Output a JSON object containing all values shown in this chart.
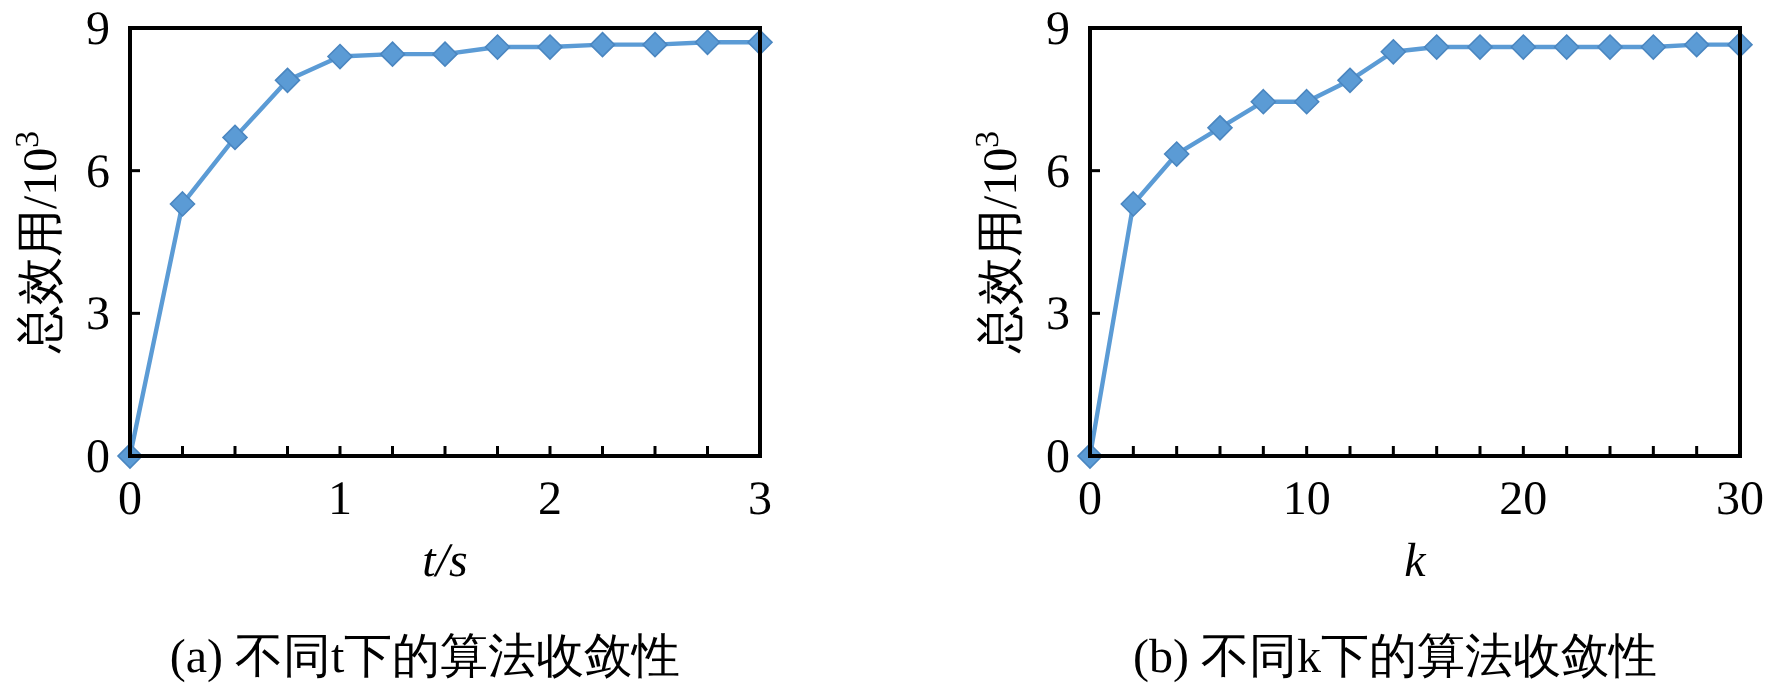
{
  "chart_data": [
    {
      "type": "line",
      "title": "(a) 不同t下的算法收敛性",
      "xlabel": "t/s",
      "ylabel": "总效用/10$^{3}$",
      "marker": "diamond",
      "line_style": "solid",
      "grid": false,
      "xlim": [
        0,
        3
      ],
      "ylim": [
        0,
        9
      ],
      "xticks": [
        0,
        {
          "value": 0.25,
          "label": null
        },
        {
          "value": 0.5,
          "label": null
        },
        {
          "value": 0.75,
          "label": null
        },
        1,
        {
          "value": 1.25,
          "label": null
        },
        {
          "value": 1.5,
          "label": null
        },
        {
          "value": 1.75,
          "label": null
        },
        2,
        {
          "value": 2.25,
          "label": null
        },
        {
          "value": 2.5,
          "label": null
        },
        {
          "value": 2.75,
          "label": null
        },
        3
      ],
      "yticks": [
        0,
        3,
        6,
        9
      ],
      "series": [
        {
          "color": "#5b9bd5",
          "x": [
            0,
            0.25,
            0.5,
            0.75,
            1,
            1.25,
            1.5,
            1.75,
            2,
            2.25,
            2.5,
            2.75,
            3
          ],
          "values": [
            0,
            5.3,
            6.7,
            7.9,
            8.4,
            8.45,
            8.45,
            8.6,
            8.6,
            8.65,
            8.65,
            8.7,
            8.7
          ]
        }
      ]
    },
    {
      "type": "line",
      "title": "(b) 不同k下的算法收敛性",
      "xlabel": "k",
      "ylabel": "总效用/10$^{3}$",
      "marker": "diamond",
      "line_style": "solid",
      "grid": false,
      "xlim": [
        0,
        30
      ],
      "ylim": [
        0,
        9
      ],
      "xticks": [
        0,
        {
          "value": 2,
          "label": null
        },
        {
          "value": 4,
          "label": null
        },
        {
          "value": 6,
          "label": null
        },
        {
          "value": 8,
          "label": null
        },
        10,
        {
          "value": 12,
          "label": null
        },
        {
          "value": 14,
          "label": null
        },
        {
          "value": 16,
          "label": null
        },
        {
          "value": 18,
          "label": null
        },
        20,
        {
          "value": 22,
          "label": null
        },
        {
          "value": 24,
          "label": null
        },
        {
          "value": 26,
          "label": null
        },
        {
          "value": 28,
          "label": null
        },
        30
      ],
      "yticks": [
        0,
        3,
        6,
        9
      ],
      "series": [
        {
          "color": "#5b9bd5",
          "x": [
            0,
            2,
            4,
            6,
            8,
            10,
            12,
            14,
            16,
            18,
            20,
            22,
            24,
            26,
            28,
            30
          ],
          "values": [
            0,
            5.3,
            6.35,
            6.9,
            7.45,
            7.45,
            7.9,
            8.5,
            8.6,
            8.6,
            8.6,
            8.6,
            8.6,
            8.6,
            8.65,
            8.65
          ]
        }
      ]
    }
  ]
}
